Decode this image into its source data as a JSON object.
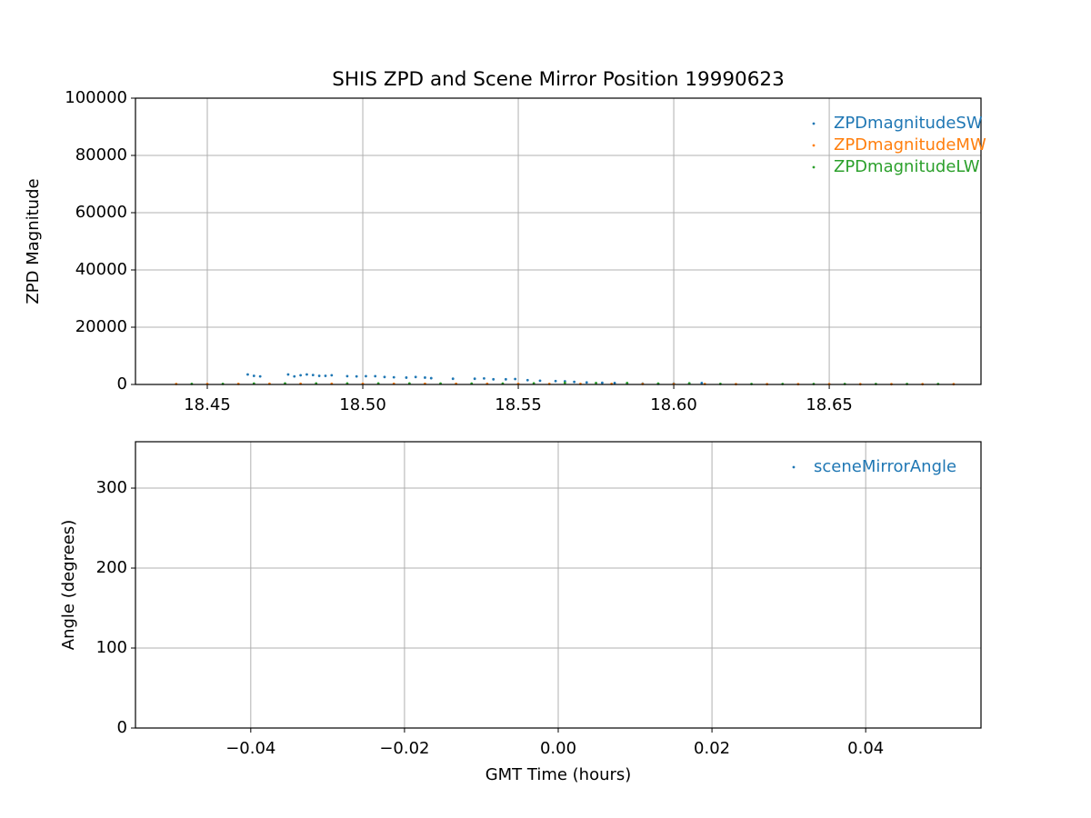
{
  "chart_data": [
    {
      "type": "scatter",
      "title": "SHIS ZPD and Scene Mirror Position 19990623",
      "y_label": "ZPD Magnitude",
      "xlim": [
        18.4269,
        18.6988
      ],
      "ylim": [
        0,
        100000
      ],
      "xticks": [
        18.45,
        {
          "value": 18.5,
          "label": "18.50"
        },
        18.55,
        {
          "value": 18.6,
          "label": "18.60"
        },
        18.65
      ],
      "yticks": [
        0,
        20000,
        40000,
        60000,
        80000,
        100000
      ],
      "grid": true,
      "legend": "upper right",
      "series": [
        {
          "name": "ZPDmagnitudeSW",
          "color": "#1f77b4",
          "x": [
            18.463,
            18.465,
            18.467,
            18.476,
            18.478,
            18.48,
            18.482,
            18.484,
            18.486,
            18.488,
            18.49,
            18.495,
            18.498,
            18.501,
            18.504,
            18.507,
            18.51,
            18.514,
            18.517,
            18.52,
            18.522,
            18.529,
            18.536,
            18.539,
            18.542,
            18.546,
            18.549,
            18.553,
            18.557,
            18.562,
            18.565,
            18.568,
            18.572,
            18.577,
            18.581,
            18.585,
            18.59,
            18.595,
            18.6,
            18.605,
            18.609
          ],
          "values": [
            3500,
            3000,
            2800,
            3500,
            2800,
            3200,
            3500,
            3300,
            3000,
            3000,
            3200,
            2900,
            2800,
            2900,
            2900,
            2600,
            2500,
            2400,
            2600,
            2400,
            2200,
            2000,
            2000,
            2100,
            1800,
            1800,
            1900,
            1500,
            1300,
            1200,
            1100,
            900,
            700,
            600,
            500,
            400,
            300,
            200,
            300,
            400,
            500
          ]
        },
        {
          "name": "ZPDmagnitudeMW",
          "color": "#ff7f0e",
          "x": [
            18.44,
            18.45,
            18.46,
            18.47,
            18.48,
            18.49,
            18.5,
            18.51,
            18.52,
            18.53,
            18.54,
            18.55,
            18.56,
            18.57,
            18.58,
            18.59,
            18.6,
            18.61,
            18.62,
            18.63,
            18.64,
            18.65,
            18.66,
            18.67,
            18.68,
            18.69
          ],
          "values": [
            150,
            150,
            200,
            250,
            250,
            250,
            250,
            250,
            250,
            250,
            250,
            200,
            200,
            200,
            200,
            150,
            150,
            150,
            100,
            100,
            100,
            100,
            100,
            100,
            100,
            100
          ]
        },
        {
          "name": "ZPDmagnitudeLW",
          "color": "#2ca02c",
          "x": [
            18.445,
            18.455,
            18.465,
            18.475,
            18.485,
            18.495,
            18.505,
            18.515,
            18.525,
            18.535,
            18.545,
            18.555,
            18.565,
            18.575,
            18.585,
            18.595,
            18.605,
            18.615,
            18.625,
            18.635,
            18.645,
            18.655,
            18.665,
            18.675,
            18.685
          ],
          "values": [
            200,
            200,
            300,
            350,
            350,
            350,
            350,
            350,
            300,
            300,
            300,
            400,
            600,
            500,
            500,
            300,
            400,
            200,
            150,
            150,
            150,
            150,
            150,
            150,
            150
          ]
        }
      ]
    },
    {
      "type": "scatter",
      "x_label": "GMT Time (hours)",
      "y_label": "Angle (degrees)",
      "xlim": [
        -0.055,
        0.055
      ],
      "ylim": [
        0,
        358
      ],
      "xticks": [
        {
          "value": -0.04,
          "label": "−0.04"
        },
        {
          "value": -0.02,
          "label": "−0.02"
        },
        {
          "value": 0,
          "label": "0.00"
        },
        {
          "value": 0.02,
          "label": "0.02"
        },
        {
          "value": 0.04,
          "label": "0.04"
        }
      ],
      "yticks": [
        0,
        100,
        200,
        300
      ],
      "grid": true,
      "legend": "upper right",
      "series": [
        {
          "name": "sceneMirrorAngle",
          "color": "#1f77b4",
          "x": [],
          "values": []
        }
      ]
    }
  ]
}
